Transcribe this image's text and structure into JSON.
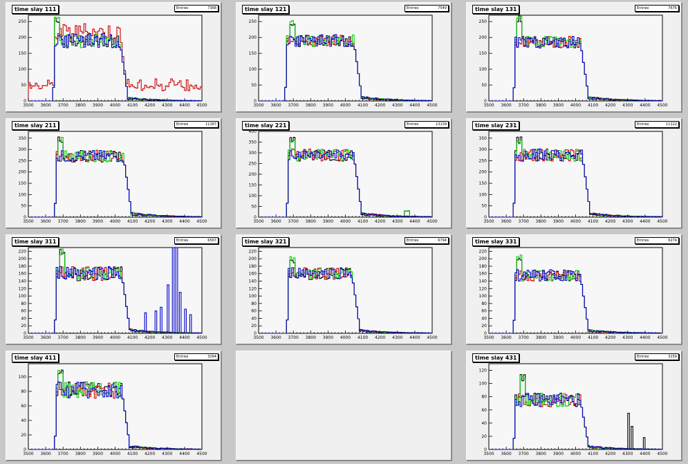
{
  "stat_label": "Entries",
  "pads": [
    {
      "title": "time slay 111",
      "entries": "7368"
    },
    {
      "title": "time slay 121",
      "entries": "7549"
    },
    {
      "title": "time slay 131",
      "entries": "7676"
    },
    {
      "title": "time slay 211",
      "entries": "11187"
    },
    {
      "title": "time slay 221",
      "entries": "13139"
    },
    {
      "title": "time slay 231",
      "entries": "11122"
    },
    {
      "title": "time slay 311",
      "entries": "6567"
    },
    {
      "title": "time slay 321",
      "entries": "6794"
    },
    {
      "title": "time slay 331",
      "entries": "6274"
    },
    {
      "title": "time slay 411",
      "entries": "3264"
    },
    {
      "title": "",
      "entries": ""
    },
    {
      "title": "time slay 431",
      "entries": "3159"
    }
  ],
  "series_colors": [
    "#000000",
    "#cc0000",
    "#00cc00",
    "#0000cc"
  ],
  "chart_data": [
    {
      "type": "line",
      "histogram": true,
      "title": "time slay 111",
      "xlim": [
        3500,
        4500
      ],
      "ylim": [
        0,
        270
      ],
      "xticks": [
        3500,
        3600,
        3700,
        3800,
        3900,
        4000,
        4100,
        4200,
        4300,
        4400,
        4500
      ],
      "yticks": [
        0,
        50,
        100,
        150,
        200,
        250
      ],
      "plateau": 190,
      "start": 3650,
      "end": 4030,
      "tail": 8,
      "noise": 0.12,
      "blob": [
        {
          "at": 3660,
          "h": 270
        }
      ],
      "series": [
        {
          "color": "#000000"
        },
        {
          "color": "#cc0000",
          "background": 50,
          "plateau": 220
        },
        {
          "color": "#00cc00"
        },
        {
          "color": "#0000cc"
        }
      ]
    },
    {
      "type": "line",
      "histogram": true,
      "title": "time slay 121",
      "xlim": [
        3500,
        4500
      ],
      "ylim": [
        0,
        270
      ],
      "xticks": [
        3500,
        3600,
        3700,
        3800,
        3900,
        4000,
        4100,
        4200,
        4300,
        4400,
        4500
      ],
      "yticks": [
        0,
        50,
        100,
        150,
        200,
        250
      ],
      "plateau": 190,
      "start": 3660,
      "end": 4050,
      "tail": 10,
      "noise": 0.1,
      "blob": [
        {
          "at": 3690,
          "h": 260
        }
      ],
      "series": [
        {
          "color": "#000000"
        },
        {
          "color": "#cc0000"
        },
        {
          "color": "#00cc00"
        },
        {
          "color": "#0000cc"
        }
      ]
    },
    {
      "type": "line",
      "histogram": true,
      "title": "time slay 131",
      "xlim": [
        3500,
        4500
      ],
      "ylim": [
        0,
        270
      ],
      "xticks": [
        3500,
        3600,
        3700,
        3800,
        3900,
        4000,
        4100,
        4200,
        4300,
        4400,
        4500
      ],
      "yticks": [
        0,
        50,
        100,
        150,
        200,
        250
      ],
      "plateau": 185,
      "start": 3650,
      "end": 4030,
      "tail": 10,
      "noise": 0.1,
      "blob": [
        {
          "at": 3670,
          "h": 270
        }
      ],
      "series": [
        {
          "color": "#000000"
        },
        {
          "color": "#cc0000"
        },
        {
          "color": "#00cc00"
        },
        {
          "color": "#0000cc"
        }
      ]
    },
    {
      "type": "line",
      "histogram": true,
      "title": "time slay 211",
      "xlim": [
        3500,
        4500
      ],
      "ylim": [
        0,
        380
      ],
      "xticks": [
        3500,
        3600,
        3700,
        3800,
        3900,
        4000,
        4100,
        4200,
        4300,
        4400,
        4500
      ],
      "yticks": [
        0,
        50,
        100,
        150,
        200,
        250,
        300,
        350
      ],
      "plateau": 270,
      "start": 3660,
      "end": 4050,
      "tail": 15,
      "noise": 0.1,
      "blob": [
        {
          "at": 3680,
          "h": 360
        }
      ],
      "series": [
        {
          "color": "#000000"
        },
        {
          "color": "#cc0000"
        },
        {
          "color": "#00cc00"
        },
        {
          "color": "#0000cc"
        }
      ]
    },
    {
      "type": "line",
      "histogram": true,
      "title": "time slay 221",
      "xlim": [
        3500,
        4500
      ],
      "ylim": [
        0,
        400
      ],
      "xticks": [
        3500,
        3600,
        3700,
        3800,
        3900,
        4000,
        4100,
        4200,
        4300,
        4400,
        4500
      ],
      "yticks": [
        0,
        50,
        100,
        150,
        200,
        250,
        300,
        350,
        400
      ],
      "plateau": 290,
      "start": 3670,
      "end": 4050,
      "tail": 15,
      "noise": 0.1,
      "blob": [
        {
          "at": 3690,
          "h": 380
        },
        {
          "at": 4350,
          "h": 30
        }
      ],
      "series": [
        {
          "color": "#000000"
        },
        {
          "color": "#cc0000"
        },
        {
          "color": "#00cc00"
        },
        {
          "color": "#0000cc"
        }
      ]
    },
    {
      "type": "line",
      "histogram": true,
      "title": "time slay 231",
      "xlim": [
        3500,
        4500
      ],
      "ylim": [
        0,
        380
      ],
      "xticks": [
        3500,
        3600,
        3700,
        3800,
        3900,
        4000,
        4100,
        4200,
        4300,
        4400,
        4500
      ],
      "yticks": [
        0,
        50,
        100,
        150,
        200,
        250,
        300,
        350
      ],
      "plateau": 275,
      "start": 3650,
      "end": 4040,
      "tail": 14,
      "noise": 0.1,
      "blob": [
        {
          "at": 3670,
          "h": 360
        }
      ],
      "series": [
        {
          "color": "#000000"
        },
        {
          "color": "#cc0000"
        },
        {
          "color": "#00cc00"
        },
        {
          "color": "#0000cc"
        }
      ]
    },
    {
      "type": "line",
      "histogram": true,
      "title": "time slay 311",
      "xlim": [
        3500,
        4500
      ],
      "ylim": [
        0,
        230
      ],
      "xticks": [
        3500,
        3600,
        3700,
        3800,
        3900,
        4000,
        4100,
        4200,
        4300,
        4400,
        4500
      ],
      "yticks": [
        0,
        20,
        40,
        60,
        80,
        100,
        120,
        140,
        160,
        180,
        200,
        220
      ],
      "plateau": 160,
      "start": 3660,
      "end": 4040,
      "tail": 8,
      "noise": 0.12,
      "blob": [
        {
          "at": 3690,
          "h": 230
        }
      ],
      "series": [
        {
          "color": "#000000"
        },
        {
          "color": "#cc0000"
        },
        {
          "color": "#00cc00"
        },
        {
          "color": "#0000cc",
          "spikes": [
            [
              4170,
              55
            ],
            [
              4230,
              60
            ],
            [
              4260,
              70
            ],
            [
              4300,
              130
            ],
            [
              4330,
              230
            ],
            [
              4350,
              230
            ],
            [
              4370,
              110
            ],
            [
              4400,
              65
            ],
            [
              4430,
              50
            ]
          ]
        }
      ]
    },
    {
      "type": "line",
      "histogram": true,
      "title": "time slay 321",
      "xlim": [
        3500,
        4500
      ],
      "ylim": [
        0,
        230
      ],
      "xticks": [
        3500,
        3600,
        3700,
        3800,
        3900,
        4000,
        4100,
        4200,
        4300,
        4400,
        4500
      ],
      "yticks": [
        0,
        20,
        40,
        60,
        80,
        100,
        120,
        140,
        160,
        180,
        200,
        220
      ],
      "plateau": 160,
      "start": 3670,
      "end": 4040,
      "tail": 7,
      "noise": 0.1,
      "blob": [
        {
          "at": 3690,
          "h": 210
        }
      ],
      "series": [
        {
          "color": "#000000"
        },
        {
          "color": "#cc0000"
        },
        {
          "color": "#00cc00"
        },
        {
          "color": "#0000cc"
        }
      ]
    },
    {
      "type": "line",
      "histogram": true,
      "title": "time slay 331",
      "xlim": [
        3500,
        4500
      ],
      "ylim": [
        0,
        230
      ],
      "xticks": [
        3500,
        3600,
        3700,
        3800,
        3900,
        4000,
        4100,
        4200,
        4300,
        4400,
        4500
      ],
      "yticks": [
        0,
        20,
        40,
        60,
        80,
        100,
        120,
        140,
        160,
        180,
        200,
        220
      ],
      "plateau": 155,
      "start": 3650,
      "end": 4030,
      "tail": 7,
      "noise": 0.1,
      "blob": [
        {
          "at": 3670,
          "h": 210
        }
      ],
      "series": [
        {
          "color": "#000000"
        },
        {
          "color": "#cc0000"
        },
        {
          "color": "#00cc00"
        },
        {
          "color": "#0000cc"
        }
      ]
    },
    {
      "type": "line",
      "histogram": true,
      "title": "time slay 411",
      "xlim": [
        3500,
        4500
      ],
      "ylim": [
        0,
        118
      ],
      "xticks": [
        3500,
        3600,
        3700,
        3800,
        3900,
        4000,
        4100,
        4200,
        4300,
        4400,
        4500
      ],
      "yticks": [
        0,
        20,
        40,
        60,
        80,
        100
      ],
      "plateau": 82,
      "start": 3660,
      "end": 4040,
      "tail": 4,
      "noise": 0.14,
      "blob": [
        {
          "at": 3680,
          "h": 112
        }
      ],
      "series": [
        {
          "color": "#000000"
        },
        {
          "color": "#cc0000"
        },
        {
          "color": "#00cc00"
        },
        {
          "color": "#0000cc"
        }
      ]
    },
    null,
    {
      "type": "line",
      "histogram": true,
      "title": "time slay 431",
      "xlim": [
        3500,
        4500
      ],
      "ylim": [
        0,
        130
      ],
      "xticks": [
        3500,
        3600,
        3700,
        3800,
        3900,
        4000,
        4100,
        4200,
        4300,
        4400,
        4500
      ],
      "yticks": [
        0,
        20,
        40,
        60,
        80,
        100,
        120
      ],
      "plateau": 75,
      "start": 3650,
      "end": 4030,
      "tail": 4,
      "noise": 0.14,
      "blob": [
        {
          "at": 3690,
          "h": 115
        }
      ],
      "series": [
        {
          "color": "#000000",
          "spikes": [
            [
              4300,
              55
            ],
            [
              4320,
              35
            ],
            [
              4390,
              18
            ]
          ]
        },
        {
          "color": "#cc0000"
        },
        {
          "color": "#00cc00"
        },
        {
          "color": "#0000cc"
        }
      ]
    }
  ]
}
